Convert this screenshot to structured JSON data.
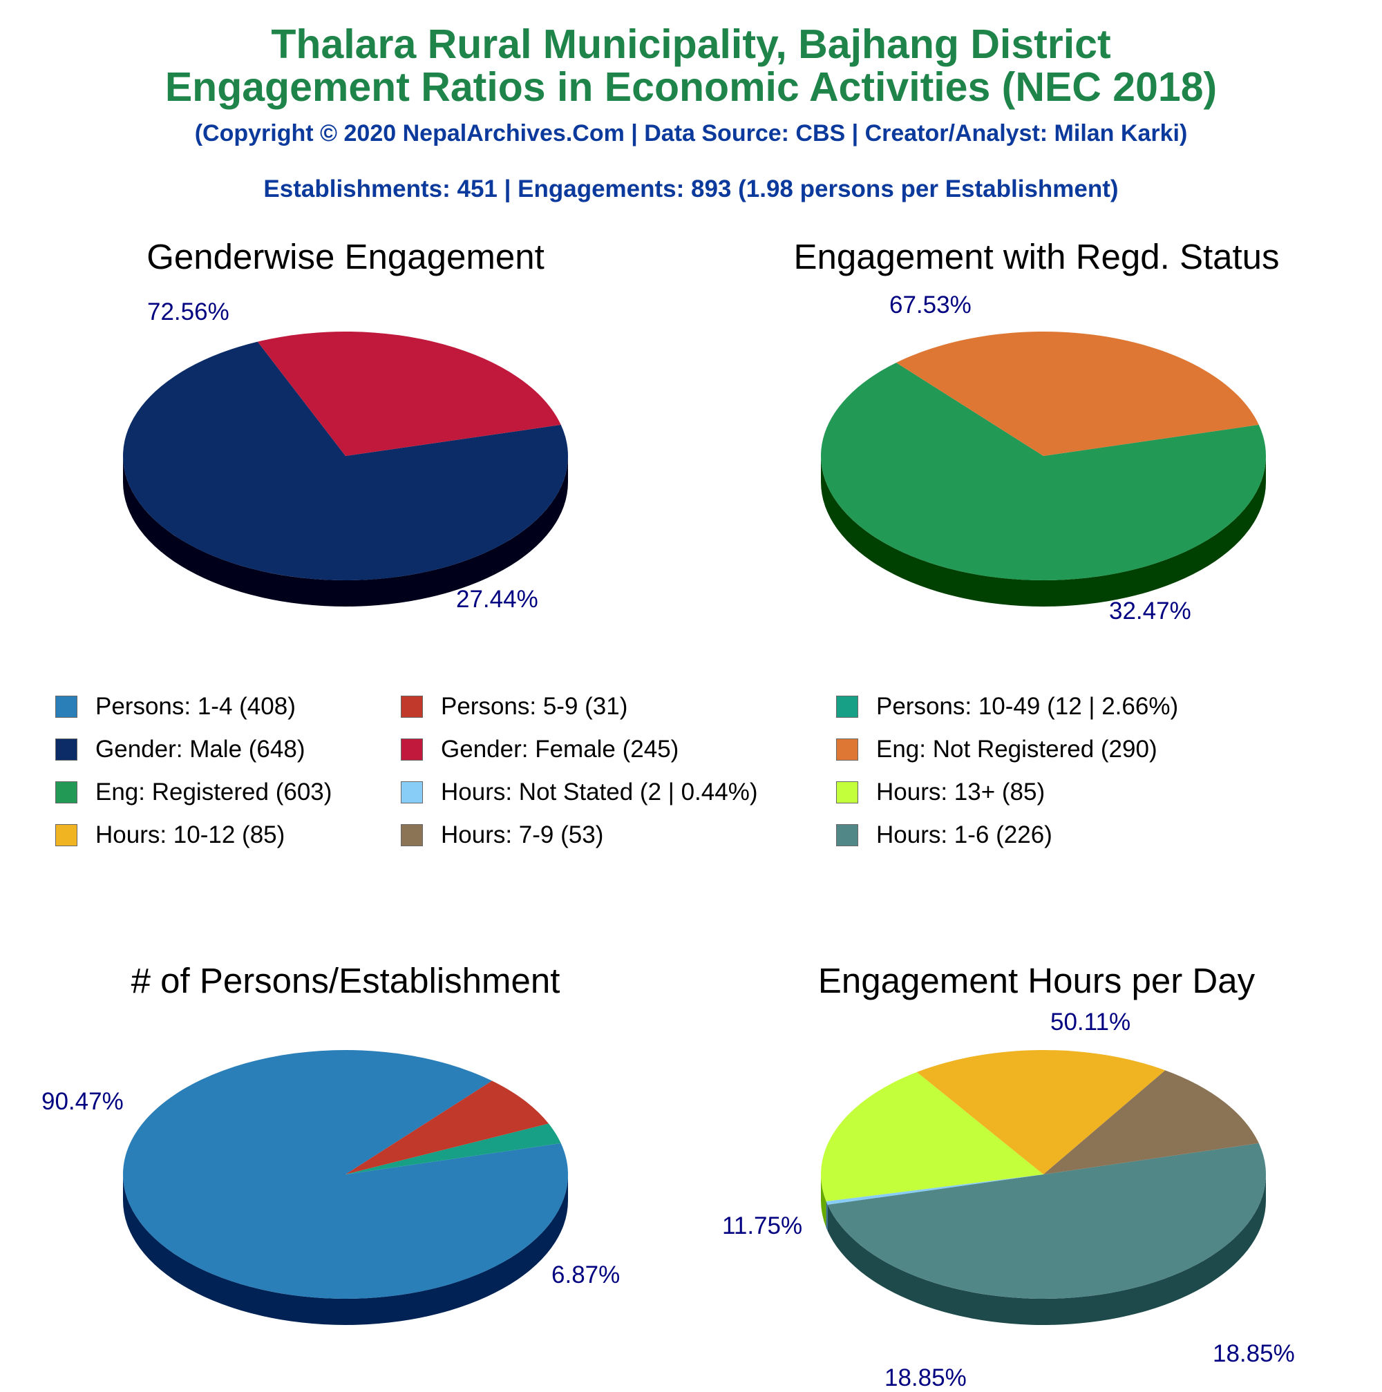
{
  "header": {
    "title_line1": "Thalara Rural Municipality, Bajhang District",
    "title_line2": "Engagement Ratios in Economic Activities (NEC 2018)",
    "copyright": "(Copyright © 2020 NepalArchives.Com | Data Source: CBS | Creator/Analyst: Milan Karki)",
    "summary": "Establishments: 451 | Engagements: 893 (1.98 persons per Establishment)"
  },
  "legend": [
    {
      "label": "Persons: 1-4 (408)",
      "color": "#2a7fb8"
    },
    {
      "label": "Persons: 5-9 (31)",
      "color": "#c0392b"
    },
    {
      "label": "Persons: 10-49 (12 | 2.66%)",
      "color": "#17a085"
    },
    {
      "label": "Gender: Male (648)",
      "color": "#0b2c66"
    },
    {
      "label": "Gender: Female (245)",
      "color": "#c0193c"
    },
    {
      "label": "Eng: Not Registered (290)",
      "color": "#dd7733"
    },
    {
      "label": "Eng: Registered (603)",
      "color": "#229955"
    },
    {
      "label": "Hours: Not Stated (2 | 0.44%)",
      "color": "#88ccf8"
    },
    {
      "label": "Hours: 13+ (85)",
      "color": "#c4ff3c"
    },
    {
      "label": "Hours: 10-12 (85)",
      "color": "#f0b321"
    },
    {
      "label": "Hours: 7-9 (53)",
      "color": "#8b7355"
    },
    {
      "label": "Hours: 1-6 (226)",
      "color": "#528788"
    }
  ],
  "chart_data": [
    {
      "type": "pie",
      "title": "Genderwise Engagement",
      "categories": [
        "Gender: Male",
        "Gender: Female"
      ],
      "values": [
        648,
        245
      ],
      "colors": [
        "#0b2c66",
        "#c0193c"
      ],
      "side_colors": [
        "#00001a",
        "#660000"
      ],
      "labels": [
        "72.56%",
        "27.44%"
      ]
    },
    {
      "type": "pie",
      "title": "Engagement with Regd. Status",
      "categories": [
        "Eng: Registered",
        "Eng: Not Registered"
      ],
      "values": [
        603,
        290
      ],
      "colors": [
        "#229955",
        "#dd7733"
      ],
      "side_colors": [
        "#004000",
        "#7a1800"
      ],
      "labels": [
        "67.53%",
        "32.47%"
      ]
    },
    {
      "type": "pie",
      "title": "# of Persons/Establishment",
      "categories": [
        "Persons: 1-4",
        "Persons: 5-9",
        "Persons: 10-49"
      ],
      "values": [
        408,
        31,
        12
      ],
      "colors": [
        "#2a7fb8",
        "#c0392b",
        "#17a085"
      ],
      "side_colors": [
        "#002255",
        "#660000",
        "#003322"
      ],
      "labels": [
        "90.47%",
        "6.87%",
        ""
      ]
    },
    {
      "type": "pie",
      "title": "Engagement Hours per Day",
      "categories": [
        "Hours: 1-6",
        "Hours: Not Stated",
        "Hours: 13+",
        "Hours: 10-12",
        "Hours: 7-9"
      ],
      "values": [
        226,
        2,
        85,
        85,
        53
      ],
      "colors": [
        "#528788",
        "#88ccf8",
        "#c4ff3c",
        "#f0b321",
        "#8b7355"
      ],
      "side_colors": [
        "#1e4a4b",
        "#336699",
        "#66aa00",
        "#955500",
        "#2e1d0e"
      ],
      "labels": [
        "50.11%",
        "",
        "18.85%",
        "18.85%",
        "11.75%"
      ]
    }
  ]
}
